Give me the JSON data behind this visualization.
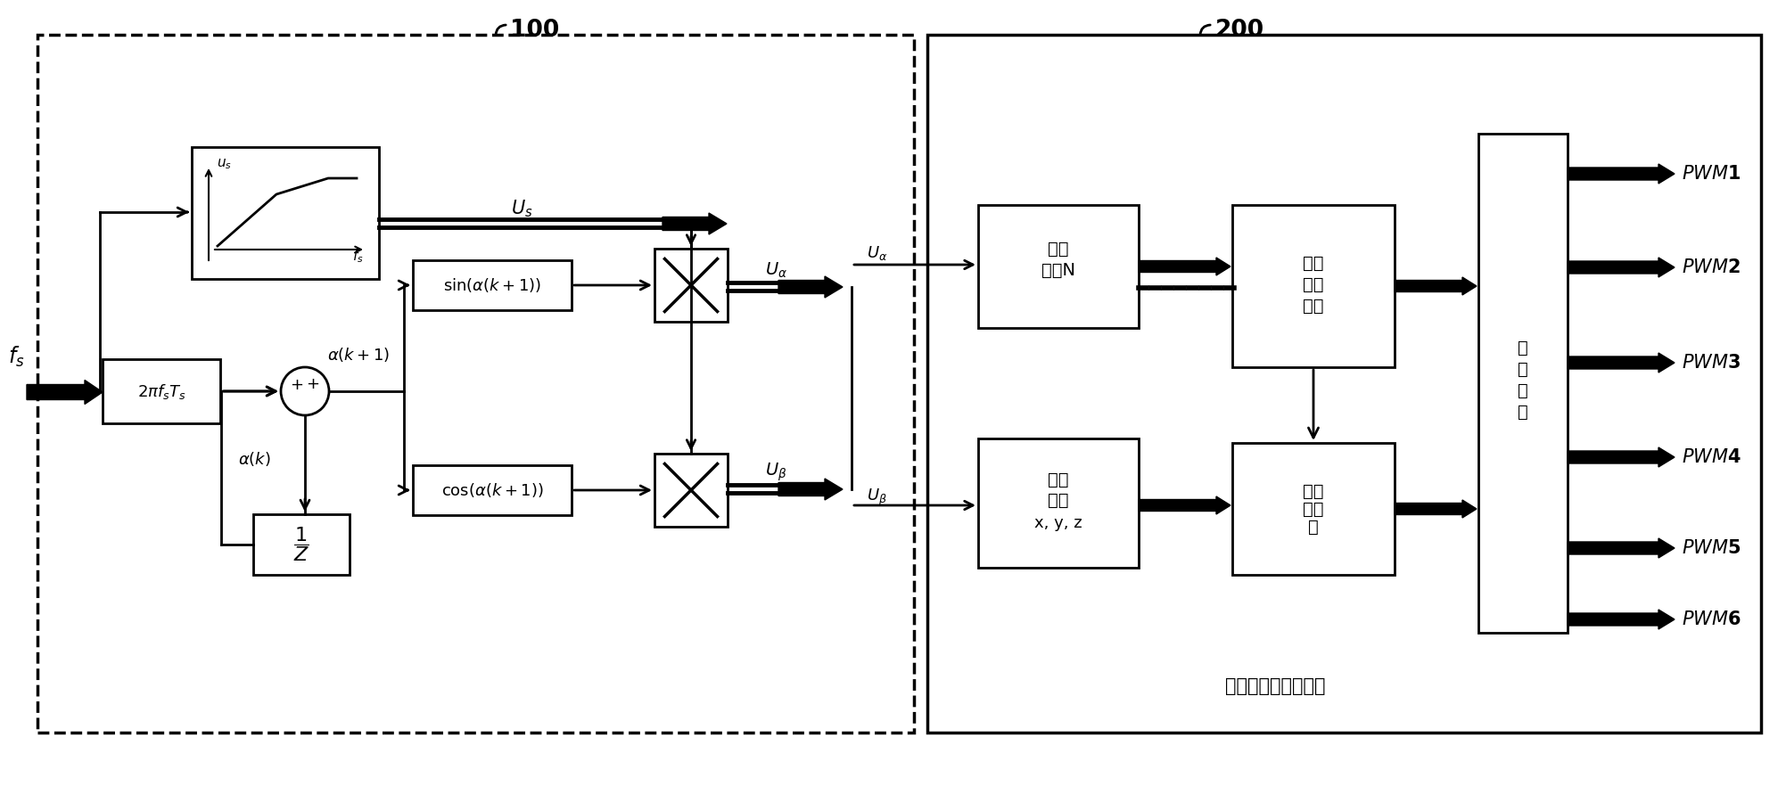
{
  "bg": "#ffffff",
  "fg": "#000000",
  "lw": 2.0,
  "label_100": "100",
  "label_200": "200",
  "svpwm_label": "ＳＶＰＷＭ异步调制",
  "pwm_labels": [
    "PWM1",
    "PWM2",
    "PWM3",
    "PWM4",
    "PWM5",
    "PWM6"
  ]
}
